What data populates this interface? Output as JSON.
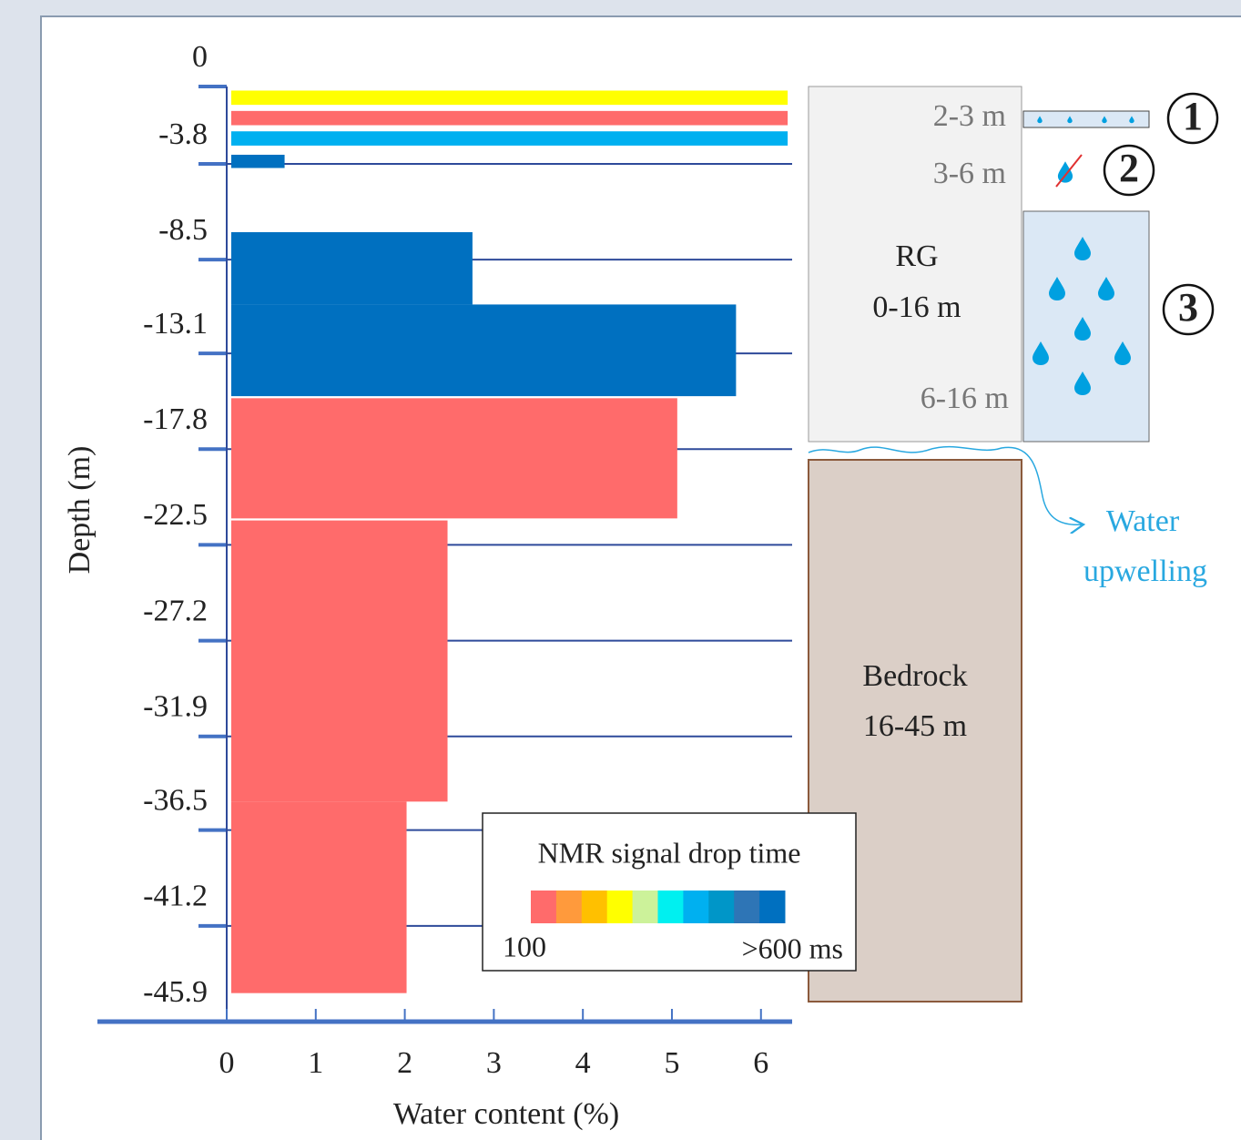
{
  "chart_data": {
    "type": "depth-bar",
    "y_label": "Depth (m)",
    "x_label": "Water content (%)",
    "ylim": [
      0,
      -45.9
    ],
    "yticks": [
      0,
      -3.8,
      -8.5,
      -13.1,
      -17.8,
      -22.5,
      -27.2,
      -31.9,
      -36.5,
      -41.2,
      -45.9
    ],
    "xlim": [
      0,
      6.35
    ],
    "xticks": [
      0,
      1,
      2,
      3,
      4,
      5,
      6
    ],
    "grid": true,
    "layers": {
      "top": [
        -0.2,
        -1.2,
        -2.2,
        -3.35,
        -7.15,
        -10.7,
        -15.3,
        -21.3,
        -35.1
      ],
      "bottom": [
        -0.9,
        -1.9,
        -2.9,
        -4.0,
        -10.7,
        -15.2,
        -21.2,
        -35.1,
        -44.5
      ],
      "values": [
        6.3,
        6.3,
        6.3,
        0.65,
        2.76,
        5.72,
        5.06,
        2.48,
        2.02
      ],
      "colors": [
        "#ffff00",
        "#ff6b6b",
        "#00b0f0",
        "#0070c0",
        "#0070c0",
        "#0070c0",
        "#ff6b6b",
        "#ff6b6b",
        "#ff6b6b"
      ]
    },
    "legend": {
      "title": "NMR signal drop time",
      "min_label": "100",
      "max_label": ">600 ms",
      "colors": [
        "#ff6b6b",
        "#ff9a3c",
        "#ffc000",
        "#ffff00",
        "#ccf29a",
        "#00f0f0",
        "#00b0f0",
        "#0096c8",
        "#2e75b6",
        "#0070c0"
      ]
    }
  },
  "diagram": {
    "rg_label": "RG",
    "rg_range": "0-16 m",
    "zone1_range": "2-3 m",
    "zone2_range": "3-6 m",
    "zone3_range": "6-16 m",
    "zone1_number": "1",
    "zone2_number": "2",
    "zone3_number": "3",
    "bedrock_label": "Bedrock",
    "bedrock_range": "16-45 m",
    "water_label_1": "Water",
    "water_label_2": "upwelling"
  }
}
